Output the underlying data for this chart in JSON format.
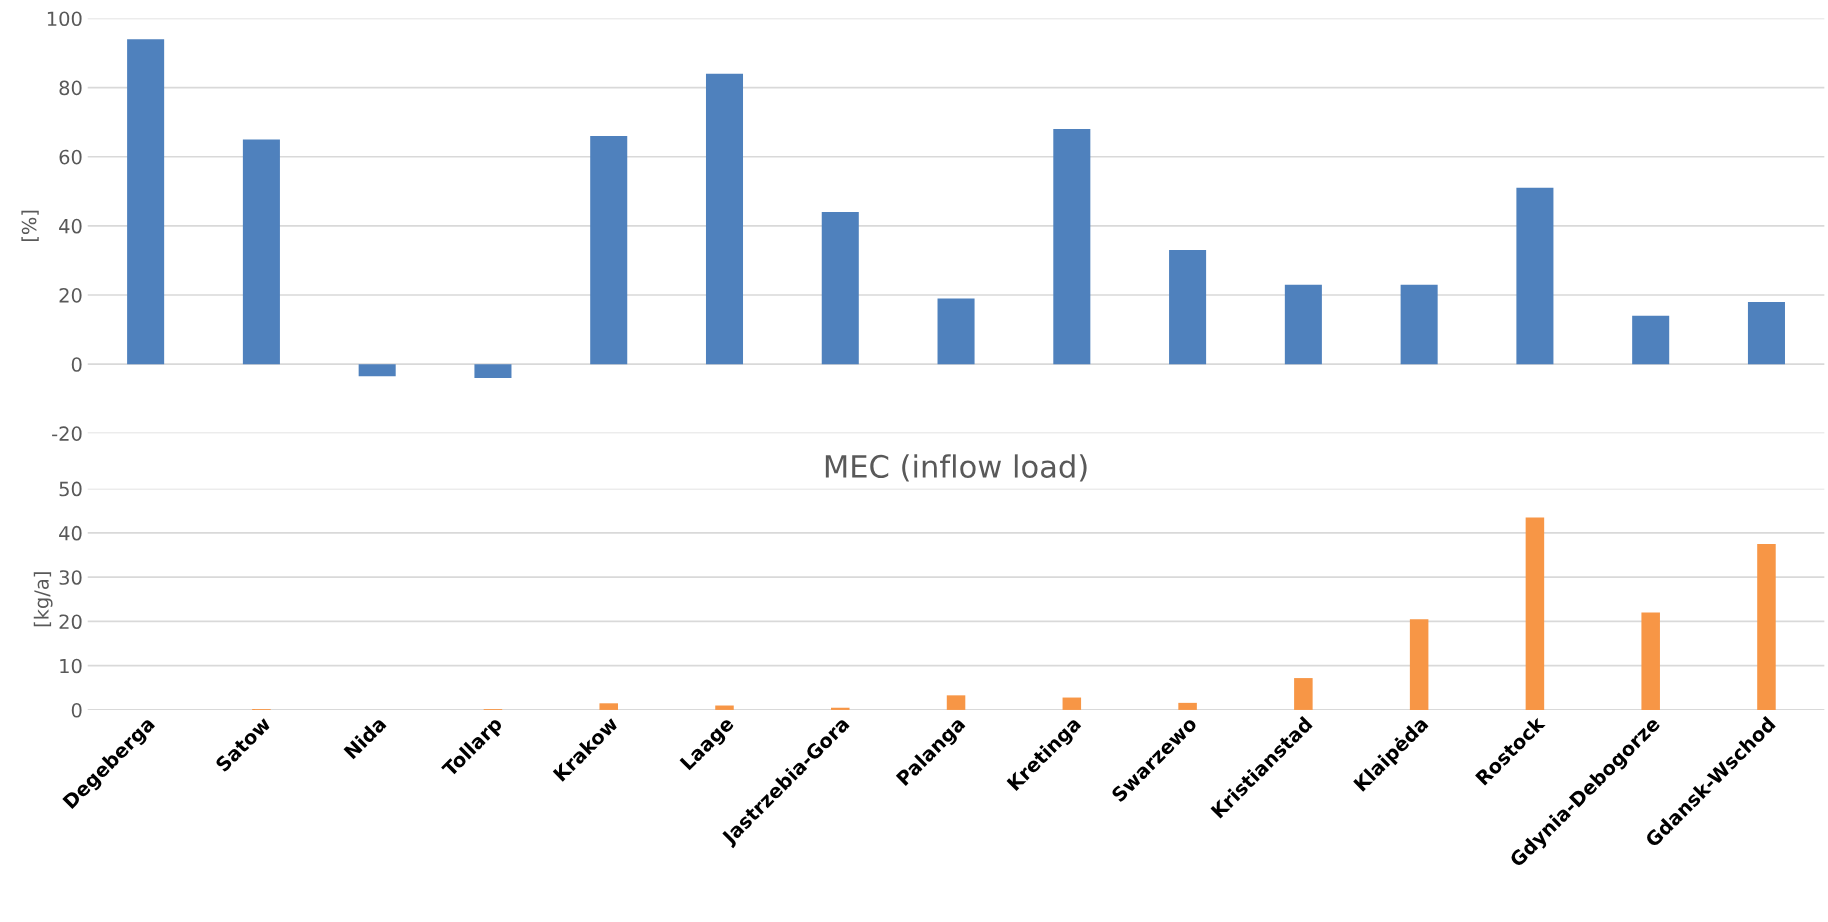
{
  "chart_data": [
    {
      "type": "bar",
      "ylabel": "[%]",
      "categories": [
        null,
        null,
        null,
        null,
        null,
        null,
        null,
        null,
        null,
        null,
        null,
        null,
        null,
        null,
        null
      ],
      "values": [
        94,
        65,
        -3.5,
        -4,
        66,
        84,
        44,
        19,
        68,
        33,
        23,
        23,
        51,
        14,
        18
      ],
      "color": "#4f81bd",
      "ylim": [
        -20,
        100
      ],
      "yticks": [
        -20,
        0,
        20,
        40,
        60,
        80,
        100
      ],
      "grid": "y",
      "tick_labels": "y"
    },
    {
      "type": "bar",
      "title": "MEC (inflow load)",
      "ylabel": "[kg/a]",
      "categories": [
        "Degeberga",
        "Satow",
        "Nida",
        "Tollarp",
        "Krakow",
        "Laage",
        "Jastrzebia-Gora",
        "Palanga",
        "Kretinga",
        "Swarzewo",
        "Kristianstad",
        "Klaipėda",
        "Rostock",
        "Gdynia-Debogorze",
        "Gdansk-Wschod"
      ],
      "values": [
        0,
        0.2,
        0,
        0.2,
        1.5,
        1,
        0.5,
        3.3,
        2.8,
        1.6,
        7.2,
        20.5,
        43.5,
        22,
        37.5
      ],
      "color": "#f79646",
      "ylim": [
        0,
        50
      ],
      "yticks": [
        0,
        10,
        20,
        30,
        40,
        50
      ],
      "grid": "y"
    }
  ]
}
